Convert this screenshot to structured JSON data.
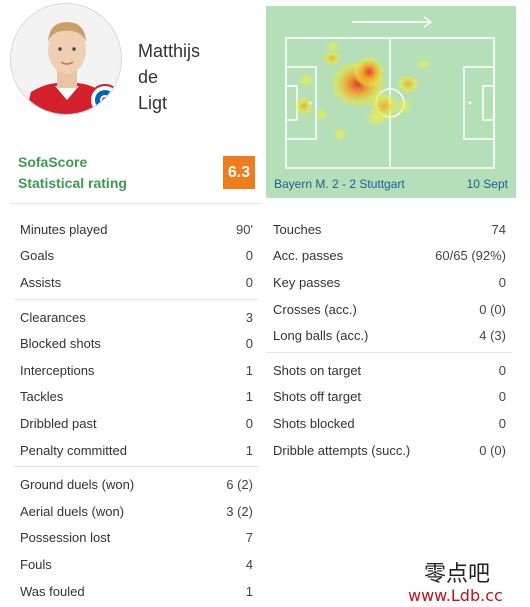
{
  "player": {
    "name_line1": "Matthijs",
    "name_line2": "de",
    "name_line3": "Ligt",
    "rating_label_line1": "SofaScore",
    "rating_label_line2": "Statistical rating",
    "rating": "6.3",
    "rating_color": "#f07d1d",
    "avatar_icon": "player-photo",
    "club_badge_icon": "fc-bayern-badge"
  },
  "heatmap": {
    "direction_icon": "attack-direction-arrow",
    "match_label": "Bayern M. 2 - 2 Stuttgart",
    "date_label": "10 Sept"
  },
  "stats_left": [
    [
      {
        "label": "Minutes played",
        "value": "90'"
      },
      {
        "label": "Goals",
        "value": "0"
      },
      {
        "label": "Assists",
        "value": "0"
      }
    ],
    [
      {
        "label": "Clearances",
        "value": "3"
      },
      {
        "label": "Blocked shots",
        "value": "0"
      },
      {
        "label": "Interceptions",
        "value": "1"
      },
      {
        "label": "Tackles",
        "value": "1"
      },
      {
        "label": "Dribbled past",
        "value": "0"
      },
      {
        "label": "Penalty committed",
        "value": "1"
      }
    ],
    [
      {
        "label": "Ground duels (won)",
        "value": "6 (2)"
      },
      {
        "label": "Aerial duels (won)",
        "value": "3 (2)"
      },
      {
        "label": "Possession lost",
        "value": "7"
      },
      {
        "label": "Fouls",
        "value": "4"
      },
      {
        "label": "Was fouled",
        "value": "1"
      }
    ]
  ],
  "stats_right": [
    [
      {
        "label": "Touches",
        "value": "74"
      },
      {
        "label": "Acc. passes",
        "value": "60/65 (92%)"
      },
      {
        "label": "Key passes",
        "value": "0"
      },
      {
        "label": "Crosses (acc.)",
        "value": "0 (0)"
      },
      {
        "label": "Long balls (acc.)",
        "value": "4 (3)"
      }
    ],
    [
      {
        "label": "Shots on target",
        "value": "0"
      },
      {
        "label": "Shots off target",
        "value": "0"
      },
      {
        "label": "Shots blocked",
        "value": "0"
      },
      {
        "label": "Dribble attempts (succ.)",
        "value": "0 (0)"
      }
    ]
  ],
  "watermark": {
    "text_cn": "零点吧",
    "url": "www.Ldb.cc"
  }
}
